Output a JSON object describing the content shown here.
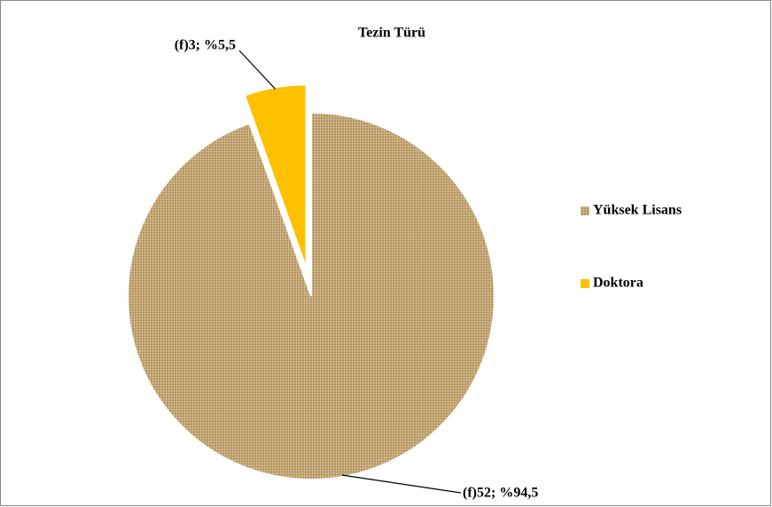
{
  "chart_data": {
    "type": "pie",
    "title": "Tezin Türü",
    "categories": [
      "Yüksek Lisans",
      "Doktora"
    ],
    "values": [
      52,
      3
    ],
    "value_labels": [
      "(f)52; %94,5",
      "(f)3; %5,5"
    ],
    "colors": [
      "#c4a673",
      "#ffc000"
    ],
    "legend": "right"
  }
}
